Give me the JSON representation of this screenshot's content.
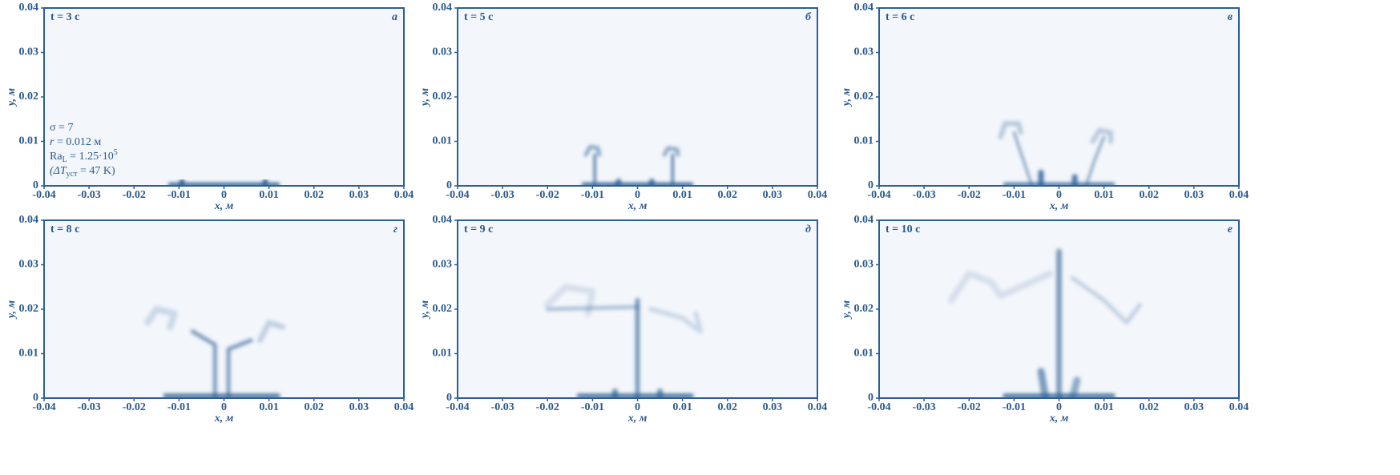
{
  "chart_data": [
    {
      "type": "plume",
      "title": "t = 3 с",
      "panel": "а",
      "xlabel": "x, м",
      "ylabel": "y, м",
      "color": "#2b5f95",
      "xlim": [
        -0.04,
        0.04
      ],
      "ylim": [
        0,
        0.04
      ],
      "xticks": [
        -0.04,
        -0.03,
        -0.02,
        -0.01,
        0,
        0.01,
        0.02,
        0.03,
        0.04
      ],
      "yticks": [
        0,
        0.01,
        0.02,
        0.03,
        0.04
      ],
      "annotations": [
        [
          "σ = 7"
        ],
        [
          "r",
          " = 0.012 м"
        ],
        [
          "Ra",
          "L",
          " = 1.25·10",
          "5"
        ],
        [
          "(ΔT",
          "уст",
          " = 47 K)"
        ]
      ]
    },
    {
      "type": "plume",
      "title": "t = 5 с",
      "panel": "б",
      "xlabel": "x, м",
      "ylabel": "y, м",
      "color": "#2b5f95",
      "xlim": [
        -0.04,
        0.04
      ],
      "ylim": [
        0,
        0.04
      ],
      "xticks": [
        -0.04,
        -0.03,
        -0.02,
        -0.01,
        0,
        0.01,
        0.02,
        0.03,
        0.04
      ],
      "yticks": [
        0,
        0.01,
        0.02,
        0.03,
        0.04
      ]
    },
    {
      "type": "plume",
      "title": "t = 6 с",
      "panel": "в",
      "xlabel": "x, м",
      "ylabel": "y, м",
      "color": "#2b5f95",
      "xlim": [
        -0.04,
        0.04
      ],
      "ylim": [
        0,
        0.04
      ],
      "xticks": [
        -0.04,
        -0.03,
        -0.02,
        -0.01,
        0,
        0.01,
        0.02,
        0.03,
        0.04
      ],
      "yticks": [
        0,
        0.01,
        0.02,
        0.03,
        0.04
      ]
    },
    {
      "type": "plume",
      "title": "t = 8 с",
      "panel": "г",
      "xlabel": "x, м",
      "ylabel": "y, м",
      "color": "#2b5f95",
      "xlim": [
        -0.04,
        0.04
      ],
      "ylim": [
        0,
        0.04
      ],
      "xticks": [
        -0.04,
        -0.03,
        -0.02,
        -0.01,
        0,
        0.01,
        0.02,
        0.03,
        0.04
      ],
      "yticks": [
        0,
        0.01,
        0.02,
        0.03,
        0.04
      ]
    },
    {
      "type": "plume",
      "title": "t = 9 с",
      "panel": "д",
      "xlabel": "x, м",
      "ylabel": "y, м",
      "color": "#2b5f95",
      "xlim": [
        -0.04,
        0.04
      ],
      "ylim": [
        0,
        0.04
      ],
      "xticks": [
        -0.04,
        -0.03,
        -0.02,
        -0.01,
        0,
        0.01,
        0.02,
        0.03,
        0.04
      ],
      "yticks": [
        0,
        0.01,
        0.02,
        0.03,
        0.04
      ]
    },
    {
      "type": "plume",
      "title": "t = 10 с",
      "panel": "е",
      "xlabel": "x, м",
      "ylabel": "y, м",
      "color": "#2b5f95",
      "xlim": [
        -0.04,
        0.04
      ],
      "ylim": [
        0,
        0.04
      ],
      "xticks": [
        -0.04,
        -0.03,
        -0.02,
        -0.01,
        0,
        0.01,
        0.02,
        0.03,
        0.04
      ],
      "yticks": [
        0,
        0.01,
        0.02,
        0.03,
        0.04
      ]
    }
  ]
}
